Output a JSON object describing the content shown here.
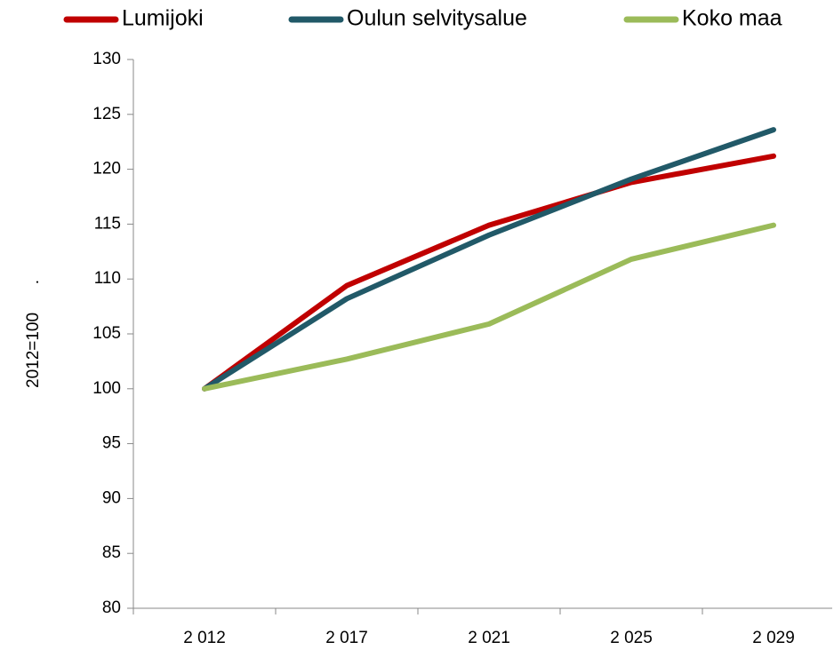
{
  "chart_data": {
    "type": "line",
    "ylabel": "2012=100      .",
    "categories": [
      "2 012",
      "2 017",
      "2 021",
      "2 025",
      "2 029"
    ],
    "series": [
      {
        "name": "Lumijoki",
        "color": "#c00000",
        "values": [
          100,
          109.4,
          114.9,
          118.8,
          121.2
        ]
      },
      {
        "name": "Oulun selvitysalue",
        "color": "#215968",
        "values": [
          100,
          108.2,
          114,
          119.1,
          123.6
        ]
      },
      {
        "name": "Koko maa",
        "color": "#9bbb59",
        "values": [
          100,
          102.7,
          105.9,
          111.8,
          114.9
        ]
      }
    ],
    "ylim": [
      80,
      130
    ],
    "yticks": [
      80,
      85,
      90,
      95,
      100,
      105,
      110,
      115,
      120,
      125,
      130
    ],
    "grid": false,
    "legend": "top"
  }
}
